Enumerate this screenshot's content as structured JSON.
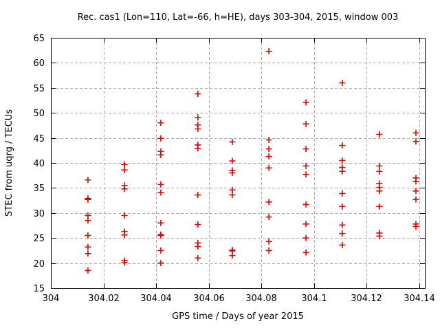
{
  "chart_data": {
    "type": "scatter",
    "title": "Rec. cas1 (Lon=110, Lat=-66, h=HE), days 303-304, 2015, window 003",
    "xlabel": "GPS time / Days of year 2015",
    "ylabel": "STEC from uqrg / TECUs",
    "xlim": [
      304.0,
      304.1422
    ],
    "ylim": [
      15,
      65
    ],
    "xticks": [
      304.0,
      304.02,
      304.04,
      304.06,
      304.08,
      304.1,
      304.12,
      304.14
    ],
    "xtick_labels": [
      "304",
      "304.02",
      "304.04",
      "304.06",
      "304.08",
      "304.1",
      "304.12",
      "304.14"
    ],
    "yticks": [
      15,
      20,
      25,
      30,
      35,
      40,
      45,
      50,
      55,
      60,
      65
    ],
    "ytick_labels": [
      "15",
      "20",
      "25",
      "30",
      "35",
      "40",
      "45",
      "50",
      "55",
      "60",
      "65"
    ],
    "grid": true,
    "legend_position": "none",
    "marker": {
      "shape": "plus",
      "size": 9,
      "color": "#dd0000"
    },
    "colors": {
      "background": "#ffffff",
      "axis": "#000000",
      "grid": "#aaaaaa",
      "text": "#000000",
      "marker": "#dd0000"
    },
    "series": [
      {
        "name": "STEC",
        "points": [
          [
            304.0141,
            36.6
          ],
          [
            304.0141,
            32.9
          ],
          [
            304.0141,
            32.7
          ],
          [
            304.0141,
            29.5
          ],
          [
            304.0141,
            28.5
          ],
          [
            304.0141,
            25.5
          ],
          [
            304.0141,
            23.2
          ],
          [
            304.0141,
            21.9
          ],
          [
            304.0141,
            18.5
          ],
          [
            304.028,
            39.7
          ],
          [
            304.028,
            38.6
          ],
          [
            304.028,
            35.5
          ],
          [
            304.028,
            34.8
          ],
          [
            304.028,
            29.5
          ],
          [
            304.028,
            26.3
          ],
          [
            304.028,
            25.6
          ],
          [
            304.028,
            20.5
          ],
          [
            304.028,
            20.1
          ],
          [
            304.0418,
            48.0
          ],
          [
            304.0418,
            44.9
          ],
          [
            304.0418,
            42.3
          ],
          [
            304.0418,
            41.6
          ],
          [
            304.0418,
            35.7
          ],
          [
            304.0418,
            34.1
          ],
          [
            304.0418,
            28.0
          ],
          [
            304.0418,
            25.7
          ],
          [
            304.0418,
            25.5
          ],
          [
            304.0418,
            22.5
          ],
          [
            304.0418,
            20.0
          ],
          [
            304.0559,
            53.8
          ],
          [
            304.0559,
            49.1
          ],
          [
            304.0559,
            47.6
          ],
          [
            304.0559,
            46.8
          ],
          [
            304.0559,
            43.6
          ],
          [
            304.0559,
            42.9
          ],
          [
            304.0559,
            33.6
          ],
          [
            304.0559,
            27.7
          ],
          [
            304.0559,
            24.0
          ],
          [
            304.0559,
            23.3
          ],
          [
            304.0559,
            21.0
          ],
          [
            304.069,
            44.2
          ],
          [
            304.069,
            40.4
          ],
          [
            304.069,
            38.5
          ],
          [
            304.069,
            38.0
          ],
          [
            304.069,
            34.6
          ],
          [
            304.069,
            33.6
          ],
          [
            304.069,
            22.6
          ],
          [
            304.069,
            22.4
          ],
          [
            304.069,
            21.5
          ],
          [
            304.0829,
            62.3
          ],
          [
            304.0829,
            44.6
          ],
          [
            304.0829,
            42.8
          ],
          [
            304.0829,
            41.3
          ],
          [
            304.0829,
            39.0
          ],
          [
            304.0829,
            32.2
          ],
          [
            304.0829,
            29.2
          ],
          [
            304.0829,
            24.3
          ],
          [
            304.0829,
            22.5
          ],
          [
            304.097,
            52.1
          ],
          [
            304.097,
            47.8
          ],
          [
            304.097,
            42.8
          ],
          [
            304.097,
            39.4
          ],
          [
            304.097,
            37.7
          ],
          [
            304.097,
            31.7
          ],
          [
            304.097,
            27.8
          ],
          [
            304.097,
            25.0
          ],
          [
            304.097,
            22.1
          ],
          [
            304.1108,
            56.0
          ],
          [
            304.1108,
            43.5
          ],
          [
            304.1108,
            40.5
          ],
          [
            304.1108,
            39.1
          ],
          [
            304.1108,
            38.3
          ],
          [
            304.1108,
            33.9
          ],
          [
            304.1108,
            31.3
          ],
          [
            304.1108,
            27.6
          ],
          [
            304.1108,
            25.9
          ],
          [
            304.1108,
            23.6
          ],
          [
            304.1249,
            45.7
          ],
          [
            304.1249,
            39.4
          ],
          [
            304.1249,
            38.3
          ],
          [
            304.1249,
            35.9
          ],
          [
            304.1249,
            35.1
          ],
          [
            304.1249,
            34.4
          ],
          [
            304.1249,
            31.3
          ],
          [
            304.1249,
            26.0
          ],
          [
            304.1249,
            25.4
          ],
          [
            304.1388,
            46.0
          ],
          [
            304.1388,
            44.3
          ],
          [
            304.1388,
            37.0
          ],
          [
            304.1388,
            36.3
          ],
          [
            304.1388,
            34.4
          ],
          [
            304.1388,
            32.7
          ],
          [
            304.1388,
            27.8
          ],
          [
            304.1388,
            27.3
          ]
        ]
      }
    ]
  }
}
